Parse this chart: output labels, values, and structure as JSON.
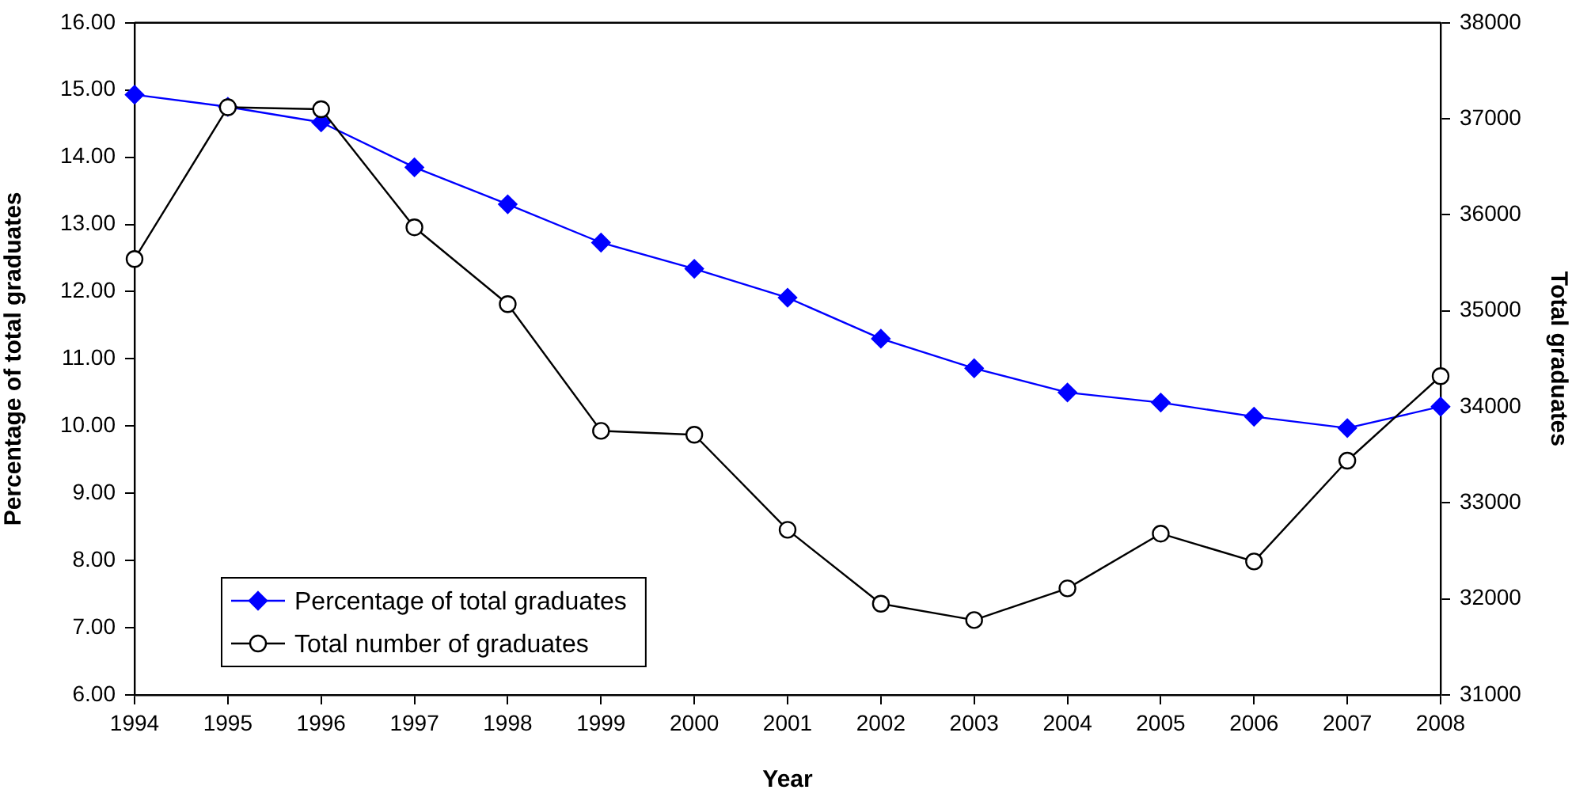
{
  "chart_data": {
    "type": "line",
    "xlabel": "Year",
    "ylabel": "Percentage of total graduates",
    "y2label": "Total graduates",
    "categories": [
      "1994",
      "1995",
      "1996",
      "1997",
      "1998",
      "1999",
      "2000",
      "2001",
      "2002",
      "2003",
      "2004",
      "2005",
      "2006",
      "2007",
      "2008"
    ],
    "series": [
      {
        "name": "Percentage of total graduates",
        "color": "#0000ff",
        "marker": "diamond",
        "values": [
          14.93,
          14.75,
          14.52,
          13.85,
          13.3,
          12.73,
          12.34,
          11.91,
          11.3,
          10.86,
          10.5,
          10.35,
          10.14,
          9.97,
          10.29
        ]
      },
      {
        "name": "Total number of graduates",
        "color": "#000000",
        "marker": "circle",
        "axis": "y2",
        "values": [
          35540,
          37120,
          37100,
          35870,
          35070,
          33750,
          33710,
          32720,
          31950,
          31780,
          32110,
          32680,
          32390,
          33440,
          34320
        ]
      }
    ],
    "ylim": [
      6,
      16
    ],
    "yticks": [
      {
        "value": 6,
        "label": "6.00"
      },
      {
        "value": 7,
        "label": "7.00"
      },
      {
        "value": 8,
        "label": "8.00"
      },
      {
        "value": 9,
        "label": "9.00"
      },
      {
        "value": 10,
        "label": "10.00"
      },
      {
        "value": 11,
        "label": "11.00"
      },
      {
        "value": 12,
        "label": "12.00"
      },
      {
        "value": 13,
        "label": "13.00"
      },
      {
        "value": 14,
        "label": "14.00"
      },
      {
        "value": 15,
        "label": "15.00"
      },
      {
        "value": 16,
        "label": "16.00"
      }
    ],
    "y2lim": [
      31000,
      38000
    ],
    "y2ticks": [
      31000,
      32000,
      33000,
      34000,
      35000,
      36000,
      37000,
      38000
    ],
    "grid": false,
    "legend": "bottom left",
    "line_style": "solid"
  }
}
